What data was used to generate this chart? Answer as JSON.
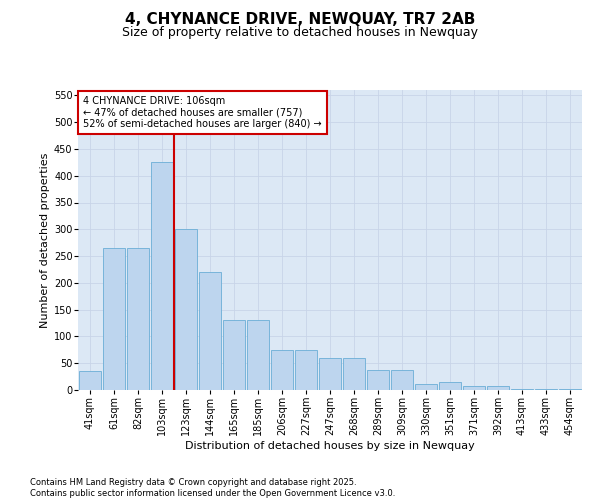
{
  "title": "4, CHYNANCE DRIVE, NEWQUAY, TR7 2AB",
  "subtitle": "Size of property relative to detached houses in Newquay",
  "xlabel": "Distribution of detached houses by size in Newquay",
  "ylabel": "Number of detached properties",
  "categories": [
    "41sqm",
    "61sqm",
    "82sqm",
    "103sqm",
    "123sqm",
    "144sqm",
    "165sqm",
    "185sqm",
    "206sqm",
    "227sqm",
    "247sqm",
    "268sqm",
    "289sqm",
    "309sqm",
    "330sqm",
    "351sqm",
    "371sqm",
    "392sqm",
    "413sqm",
    "433sqm",
    "454sqm"
  ],
  "values": [
    35,
    265,
    265,
    425,
    300,
    220,
    130,
    130,
    75,
    75,
    60,
    60,
    38,
    38,
    12,
    15,
    8,
    8,
    2,
    2,
    1
  ],
  "bar_color": "#bdd5ee",
  "bar_edge_color": "#6baed6",
  "grid_color": "#c8d4e8",
  "background_color": "#dce8f5",
  "vline_color": "#cc0000",
  "vline_pos": 3.5,
  "annotation_text": "4 CHYNANCE DRIVE: 106sqm\n← 47% of detached houses are smaller (757)\n52% of semi-detached houses are larger (840) →",
  "annotation_box_color": "#cc0000",
  "ylim": [
    0,
    560
  ],
  "yticks": [
    0,
    50,
    100,
    150,
    200,
    250,
    300,
    350,
    400,
    450,
    500,
    550
  ],
  "footer": "Contains HM Land Registry data © Crown copyright and database right 2025.\nContains public sector information licensed under the Open Government Licence v3.0.",
  "title_fontsize": 11,
  "subtitle_fontsize": 9,
  "tick_fontsize": 7,
  "label_fontsize": 8,
  "footer_fontsize": 6
}
